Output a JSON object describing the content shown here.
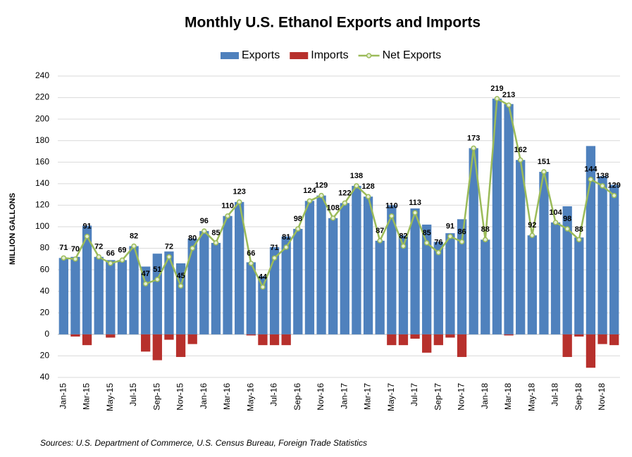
{
  "chart_data": {
    "type": "bar-line",
    "title": "Monthly U.S. Ethanol Exports and Imports",
    "y_label": "MILLION GALLONS",
    "source": "Sources: U.S. Department of Commerce, U.S. Census Bureau, Foreign Trade Statistics",
    "categories": [
      "Jan-15",
      null,
      "Mar-15",
      null,
      "May-15",
      null,
      "Jul-15",
      null,
      "Sep-15",
      null,
      "Nov-15",
      null,
      "Jan-16",
      null,
      "Mar-16",
      null,
      "May-16",
      null,
      "Jul-16",
      null,
      "Sep-16",
      null,
      "Nov-16",
      null,
      "Jan-17",
      null,
      "Mar-17",
      null,
      "May-17",
      null,
      "Jul-17",
      null,
      "Sep-17",
      null,
      "Nov-17",
      null,
      "Jan-18",
      null,
      "Mar-18",
      null,
      "May-18",
      null,
      "Jul-18",
      null,
      "Sep-18",
      null,
      "Nov-18",
      null
    ],
    "series": [
      {
        "name": "Exports",
        "type": "bar",
        "color": "#4f81bd",
        "values": [
          71,
          72,
          101,
          72,
          69,
          69,
          82,
          63,
          75,
          77,
          66,
          89,
          96,
          85,
          110,
          123,
          67,
          54,
          81,
          91,
          98,
          124,
          129,
          108,
          122,
          138,
          128,
          87,
          120,
          92,
          117,
          102,
          86,
          94,
          107,
          173,
          88,
          219,
          214,
          162,
          92,
          151,
          104,
          119,
          90,
          175,
          147,
          139
        ]
      },
      {
        "name": "Imports",
        "type": "bar",
        "color": "#b7302c",
        "values": [
          0,
          -2,
          -10,
          0,
          -3,
          0,
          0,
          -16,
          -24,
          -5,
          -21,
          -9,
          0,
          0,
          0,
          0,
          -1,
          -10,
          -10,
          -10,
          0,
          0,
          0,
          0,
          0,
          0,
          0,
          0,
          -10,
          -10,
          -4,
          -17,
          -10,
          -3,
          -21,
          0,
          0,
          0,
          -1,
          0,
          0,
          0,
          0,
          -21,
          -2,
          -31,
          -9,
          -10
        ]
      },
      {
        "name": "Net Exports",
        "type": "line",
        "color": "#9bbb59",
        "values": [
          71,
          70,
          91,
          72,
          66,
          69,
          82,
          47,
          51,
          72,
          45,
          80,
          96,
          85,
          110,
          123,
          66,
          44,
          71,
          81,
          98,
          124,
          129,
          108,
          122,
          138,
          128,
          87,
          110,
          82,
          113,
          85,
          76,
          91,
          86,
          173,
          88,
          219,
          213,
          162,
          92,
          151,
          104,
          98,
          88,
          144,
          138,
          129
        ]
      }
    ],
    "ylim": [
      -40,
      240
    ],
    "yticks": [
      {
        "value": -40,
        "label": "40"
      },
      {
        "value": -20,
        "label": "20"
      },
      0,
      20,
      40,
      60,
      80,
      100,
      120,
      140,
      160,
      180,
      200,
      220,
      240
    ],
    "grid": true,
    "legend": "top"
  }
}
